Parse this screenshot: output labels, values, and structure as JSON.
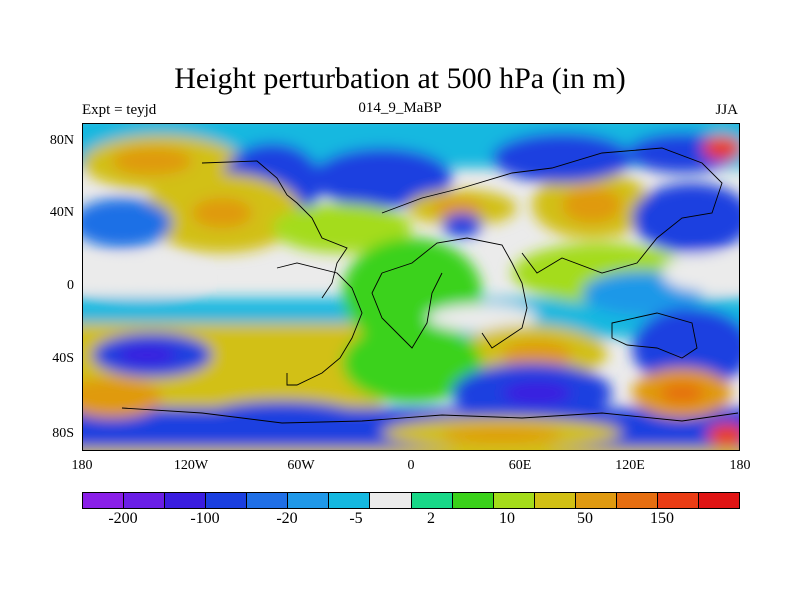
{
  "title": "Height perturbation at 500 hPa (in m)",
  "experiment": "Expt = teyjd",
  "case": "014_9_MaBP",
  "season": "JJA",
  "y_axis_labels": [
    "80N",
    "40N",
    "0",
    "40S",
    "80S"
  ],
  "x_axis_labels": [
    "180",
    "120W",
    "60W",
    "0",
    "60E",
    "120E",
    "180"
  ],
  "colorbar_labels": [
    "-200",
    "-100",
    "-20",
    "-5",
    "2",
    "10",
    "50",
    "150"
  ],
  "colorbar_colors": [
    "#8a1fe8",
    "#6a1ee6",
    "#3a1de0",
    "#1a3fe0",
    "#1f6fe6",
    "#1f98e8",
    "#14b8e0",
    "#ebebeb",
    "#18d888",
    "#3ad21a",
    "#a4dc1a",
    "#d2c014",
    "#e09a10",
    "#e66e10",
    "#ea3c14",
    "#e01414"
  ],
  "chart_data": {
    "type": "heatmap",
    "variable": "Height perturbation at 500 hPa",
    "units": "m",
    "contour_levels": [
      "-200",
      "-100",
      "-20",
      "-5",
      "2",
      "10",
      "50",
      "150"
    ],
    "longitude_range": [
      -180,
      180
    ],
    "latitude_range": [
      -90,
      90
    ]
  }
}
